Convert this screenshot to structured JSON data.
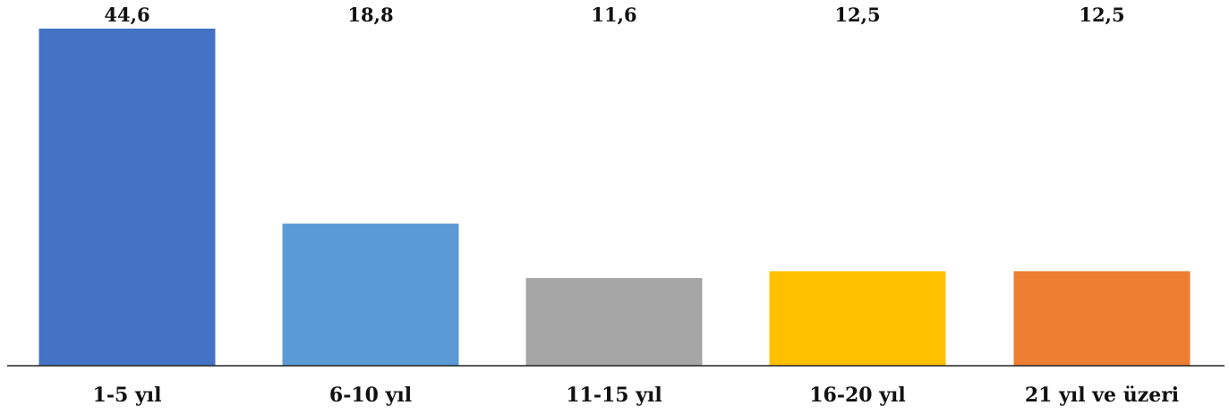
{
  "chart_data": {
    "type": "bar",
    "categories": [
      "1-5 yıl",
      "6-10 yıl",
      "11-15 yıl",
      "16-20 yıl",
      "21 yıl ve üzeri"
    ],
    "values": [
      44.6,
      18.8,
      11.6,
      12.5,
      12.5
    ],
    "value_labels": [
      "44,6",
      "18,8",
      "11,6",
      "12,5",
      "12,5"
    ],
    "colors": [
      "#4472C4",
      "#5B9BD5",
      "#A5A5A5",
      "#FFC000",
      "#ED7D31"
    ],
    "ylim": [
      0,
      44.6
    ],
    "grid": false,
    "legend": "none",
    "title": "",
    "xlabel": "",
    "ylabel": ""
  }
}
